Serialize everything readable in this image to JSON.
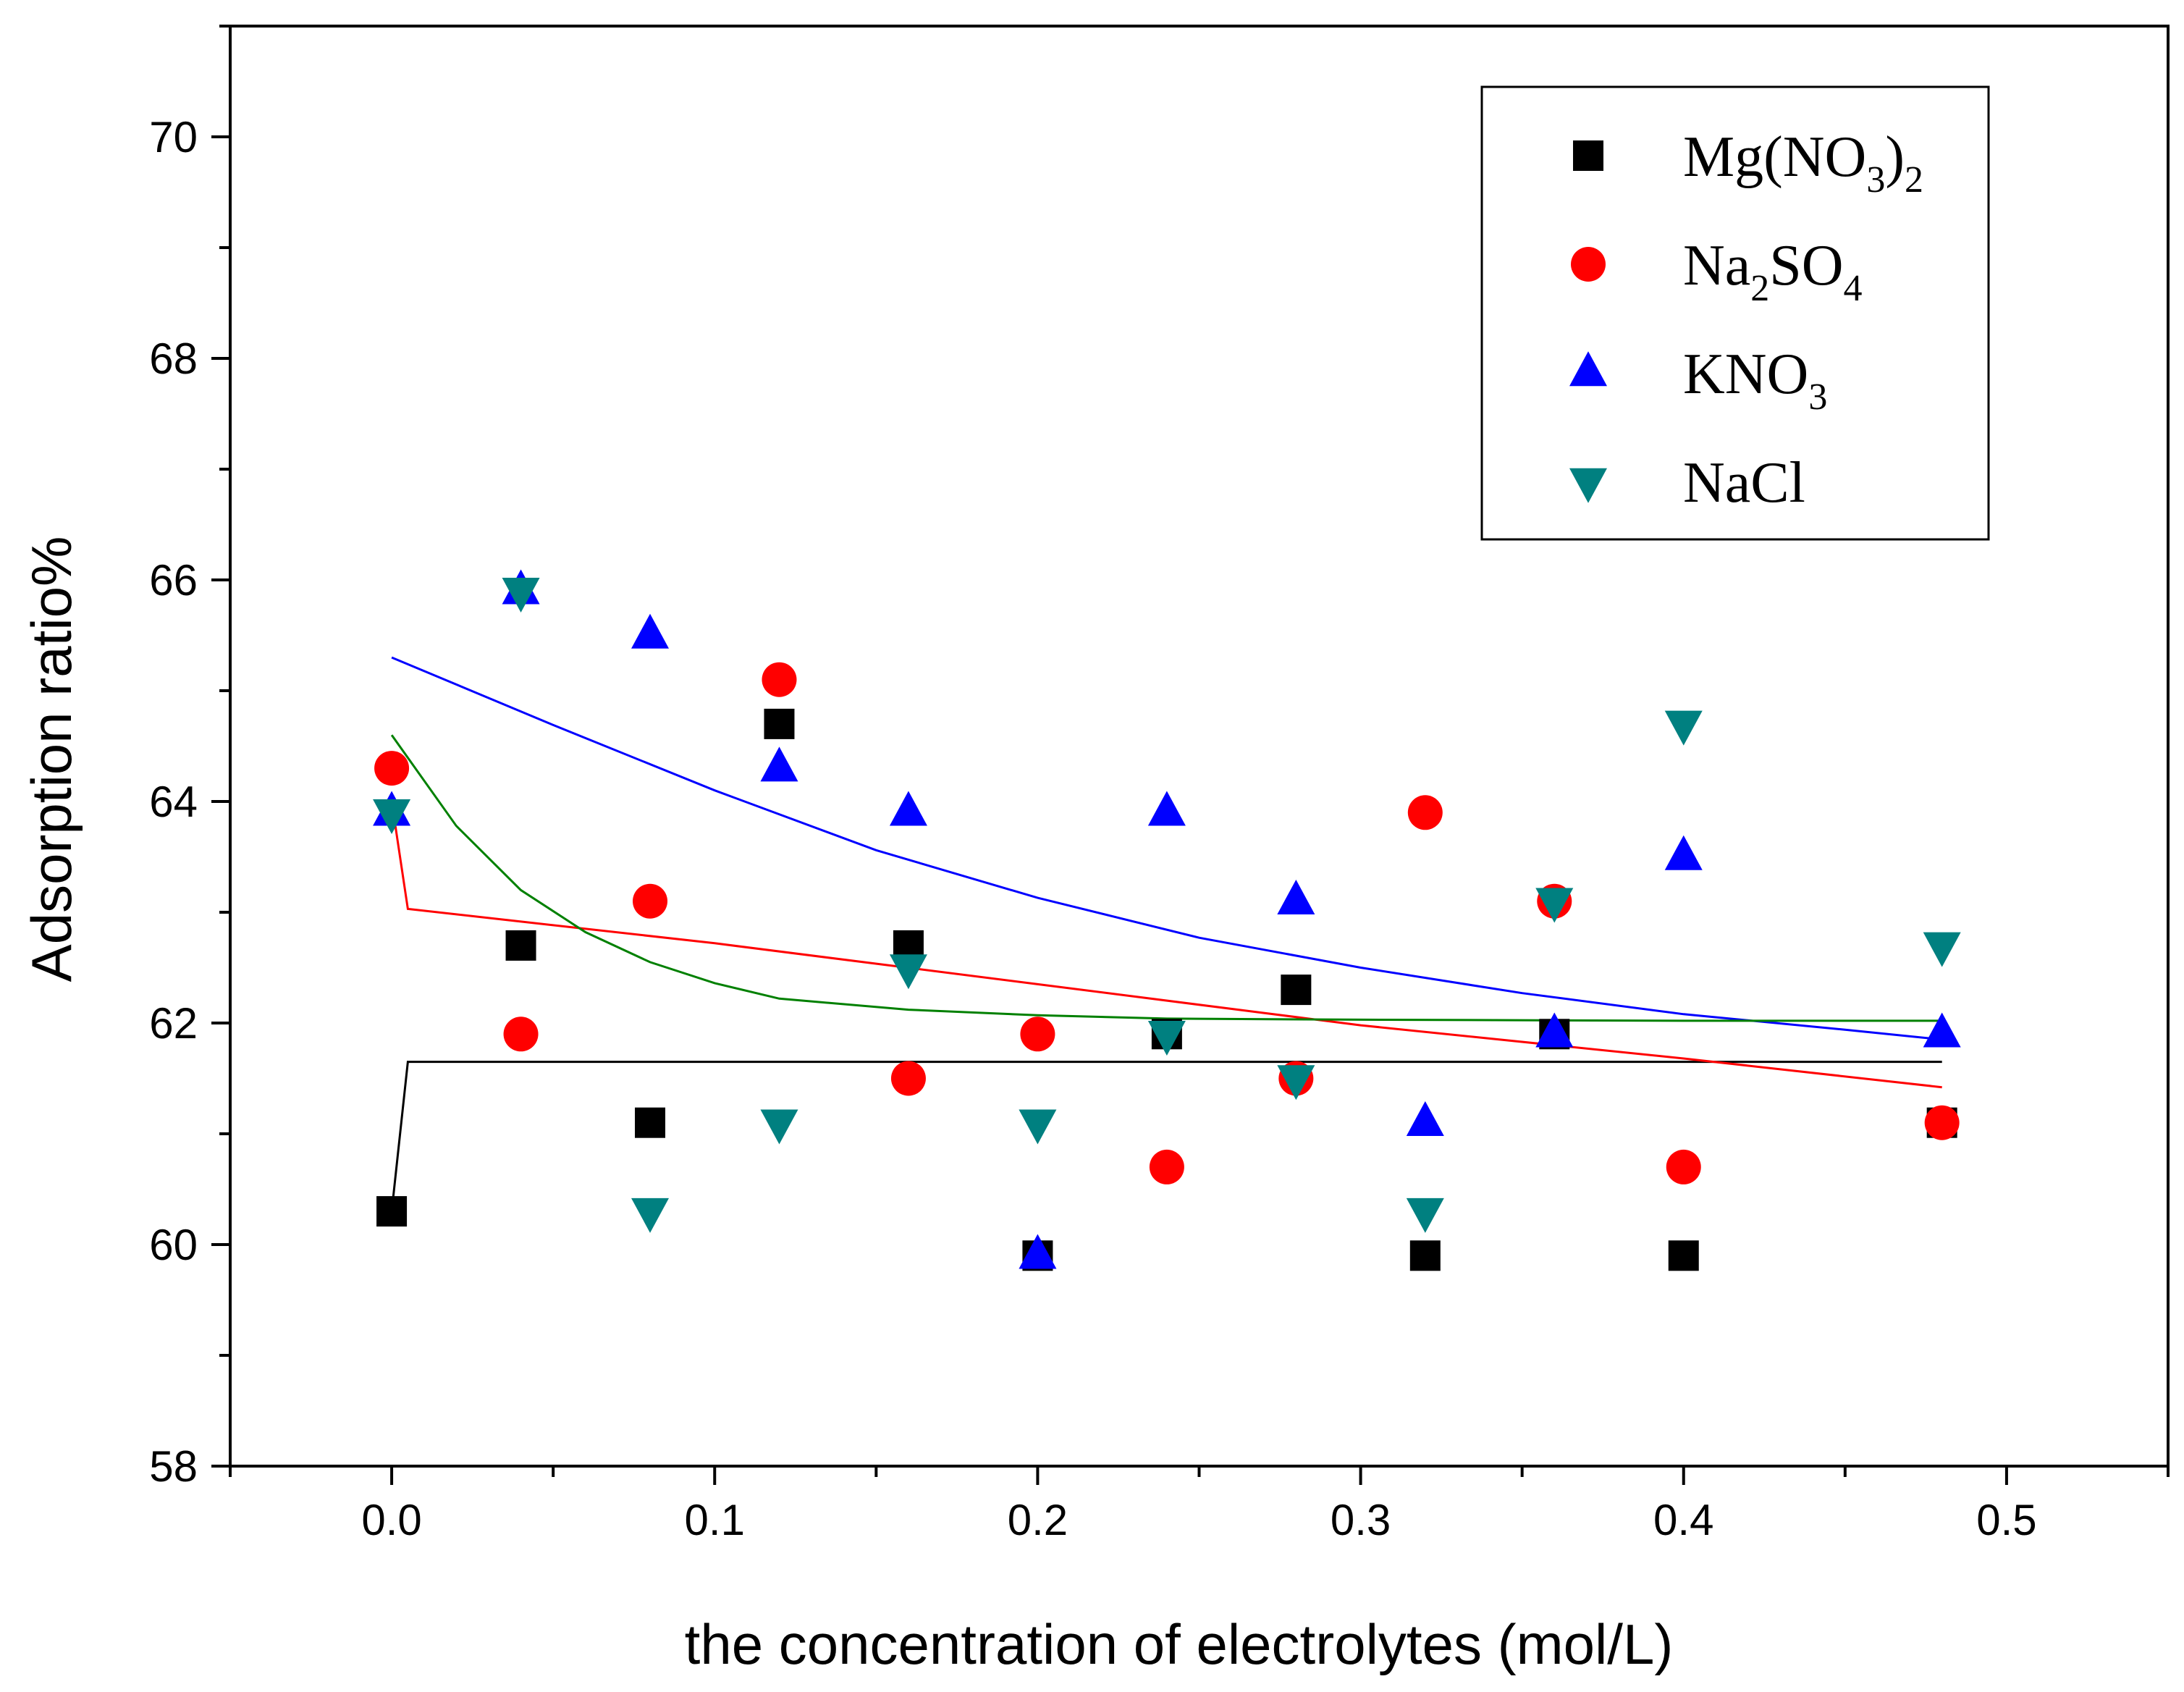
{
  "chart_data": {
    "type": "scatter",
    "title": "",
    "xlabel": "the concentration of electrolytes (mol/L)",
    "ylabel": "Adsorption ratio%",
    "xlim": [
      -0.05,
      0.55
    ],
    "ylim": [
      58,
      71
    ],
    "x_ticks": [
      0.0,
      0.1,
      0.2,
      0.3,
      0.4,
      0.5
    ],
    "x_tick_labels": [
      "0.0",
      "0.1",
      "0.2",
      "0.3",
      "0.4",
      "0.5"
    ],
    "y_ticks": [
      58,
      60,
      62,
      64,
      66,
      68,
      70
    ],
    "y_tick_labels": [
      "58",
      "60",
      "62",
      "64",
      "66",
      "68",
      "70"
    ],
    "legend_position": "top-right",
    "series": [
      {
        "name": "Mg(NO3)2",
        "legend_label": {
          "base": "Mg(NO",
          "sub1": "3",
          "mid": ")",
          "sub2": "2"
        },
        "marker": "square",
        "color": "#000000",
        "x": [
          0.0,
          0.04,
          0.08,
          0.12,
          0.16,
          0.2,
          0.24,
          0.28,
          0.32,
          0.36,
          0.4,
          0.48
        ],
        "y": [
          60.3,
          62.7,
          61.1,
          64.7,
          62.7,
          59.9,
          61.9,
          62.3,
          59.9,
          61.9,
          59.9,
          61.1
        ],
        "fit": {
          "x": [
            0.0,
            0.005,
            0.48
          ],
          "y": [
            60.3,
            61.65,
            61.65
          ]
        }
      },
      {
        "name": "Na2SO4",
        "legend_label": {
          "base": "Na",
          "sub1": "2",
          "mid": "SO",
          "sub2": "4"
        },
        "marker": "circle",
        "color": "#ff0000",
        "x": [
          0.0,
          0.04,
          0.08,
          0.12,
          0.16,
          0.2,
          0.24,
          0.28,
          0.32,
          0.36,
          0.4,
          0.48
        ],
        "y": [
          64.3,
          61.9,
          63.1,
          65.1,
          61.5,
          61.9,
          60.7,
          61.5,
          63.9,
          63.1,
          60.7,
          61.1
        ],
        "fit": {
          "x": [
            0.0,
            0.005,
            0.1,
            0.2,
            0.3,
            0.4,
            0.48
          ],
          "y": [
            64.0,
            63.03,
            62.72,
            62.35,
            61.98,
            61.68,
            61.42
          ]
        }
      },
      {
        "name": "KNO3",
        "legend_label": {
          "base": "KNO",
          "sub1": "3",
          "mid": "",
          "sub2": ""
        },
        "marker": "triangle-up",
        "color": "#0000ff",
        "x": [
          0.0,
          0.04,
          0.08,
          0.12,
          0.16,
          0.2,
          0.24,
          0.28,
          0.32,
          0.36,
          0.4,
          0.48
        ],
        "y": [
          63.9,
          65.9,
          65.5,
          64.3,
          63.9,
          59.9,
          63.9,
          63.1,
          61.1,
          61.9,
          63.5,
          61.9
        ],
        "fit": {
          "x": [
            0.0,
            0.05,
            0.1,
            0.15,
            0.2,
            0.25,
            0.3,
            0.35,
            0.4,
            0.45,
            0.48
          ],
          "y": [
            65.3,
            64.69,
            64.1,
            63.56,
            63.13,
            62.77,
            62.5,
            62.27,
            62.08,
            61.94,
            61.85
          ]
        }
      },
      {
        "name": "NaCl",
        "legend_label": {
          "base": "NaCl",
          "sub1": "",
          "mid": "",
          "sub2": ""
        },
        "marker": "triangle-down",
        "color": "#008080",
        "x": [
          0.0,
          0.04,
          0.08,
          0.12,
          0.16,
          0.2,
          0.24,
          0.28,
          0.32,
          0.36,
          0.4,
          0.48
        ],
        "y": [
          63.9,
          65.9,
          60.3,
          61.1,
          62.5,
          61.1,
          61.9,
          61.5,
          60.3,
          63.1,
          64.7,
          62.7
        ],
        "fit": {
          "x": [
            0.0,
            0.02,
            0.04,
            0.06,
            0.08,
            0.1,
            0.12,
            0.16,
            0.2,
            0.24,
            0.3,
            0.4,
            0.48
          ],
          "y": [
            64.6,
            63.78,
            63.2,
            62.82,
            62.55,
            62.36,
            62.22,
            62.12,
            62.07,
            62.04,
            62.03,
            62.02,
            62.02
          ]
        }
      }
    ]
  },
  "colors": {
    "Mg(NO3)2": "#000000",
    "Na2SO4": "#ff0000",
    "KNO3": "#0000ff",
    "NaCl": "#008080",
    "Mg_fit": "#000000",
    "Na2SO4_fit": "#ff0000",
    "KNO3_fit": "#0000ff",
    "NaCl_fit": "#008000"
  }
}
